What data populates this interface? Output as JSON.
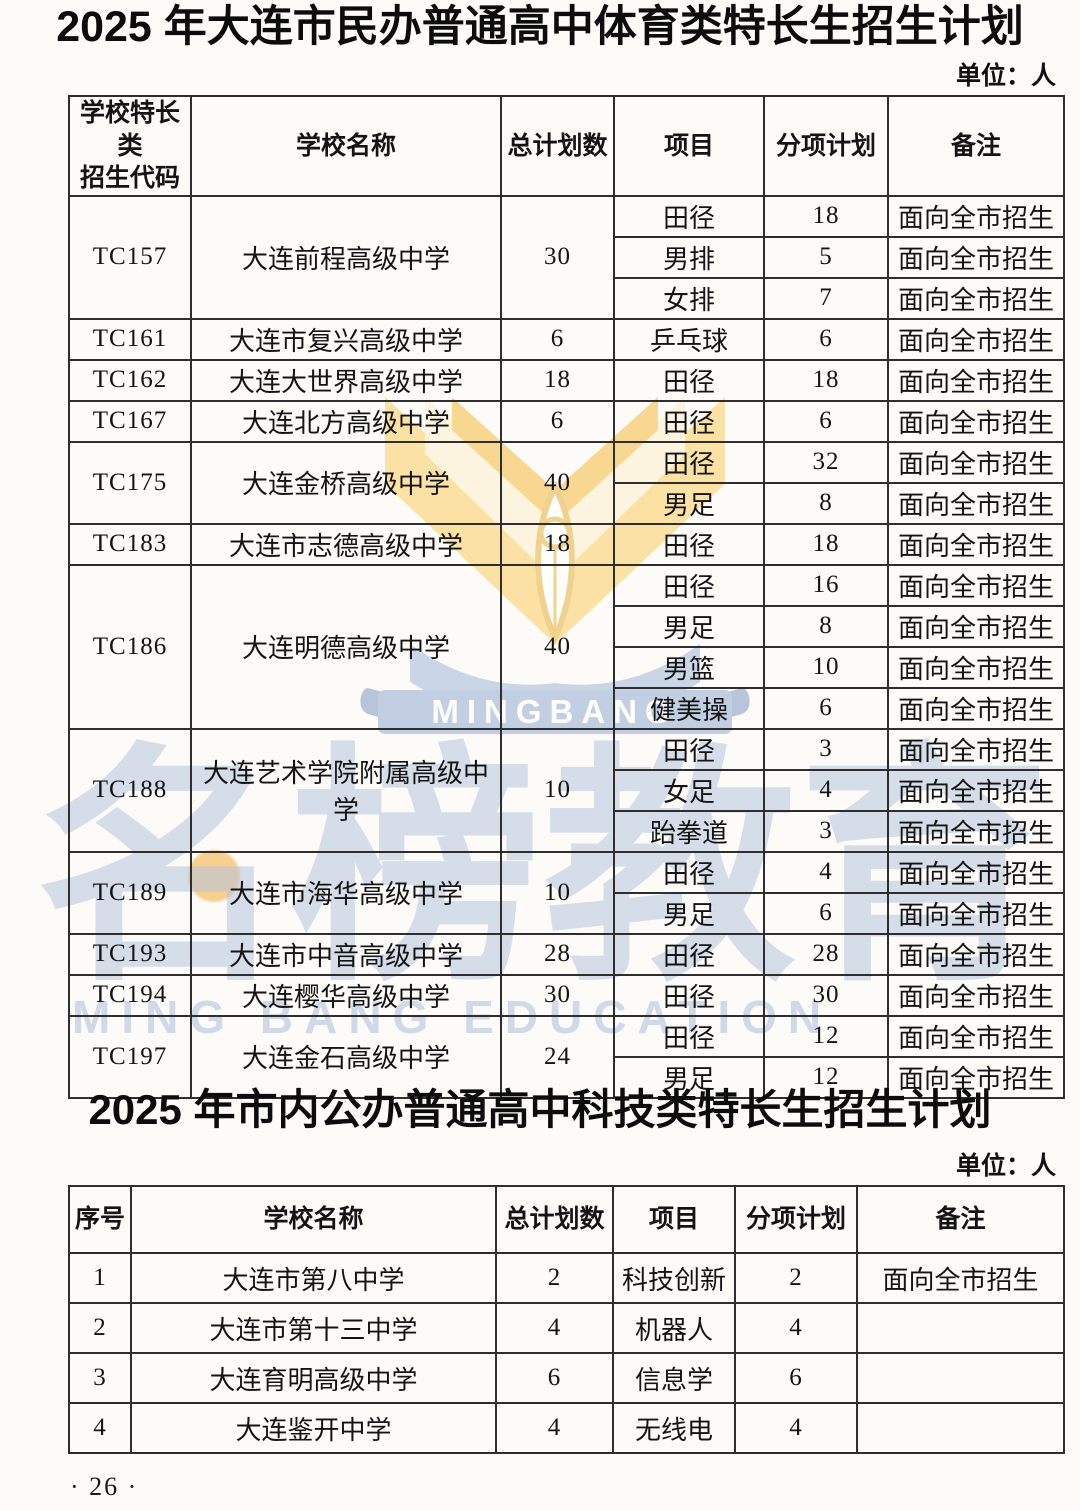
{
  "page": {
    "page_number": "· 26 ·"
  },
  "watermark": {
    "logo_text": "MINGBANG",
    "big_text": "名榜教育",
    "footer_text": "MING BANG EDUCATION",
    "accent_blue": "#9db1d3",
    "accent_yellow": "#fbd36e"
  },
  "table1": {
    "title": "2025 年大连市民办普通高中体育类特长生招生计划",
    "unit_label": "单位：人",
    "headers": [
      "学校特长类\n招生代码",
      "学校名称",
      "总计划数",
      "项目",
      "分项计划",
      "备注"
    ],
    "rows": [
      {
        "code": "TC157",
        "school": "大连前程高级中学",
        "total": "30",
        "items": [
          {
            "sport": "田径",
            "count": "18",
            "note": "面向全市招生"
          },
          {
            "sport": "男排",
            "count": "5",
            "note": "面向全市招生"
          },
          {
            "sport": "女排",
            "count": "7",
            "note": "面向全市招生"
          }
        ]
      },
      {
        "code": "TC161",
        "school": "大连市复兴高级中学",
        "total": "6",
        "items": [
          {
            "sport": "乒乓球",
            "count": "6",
            "note": "面向全市招生"
          }
        ]
      },
      {
        "code": "TC162",
        "school": "大连大世界高级中学",
        "total": "18",
        "items": [
          {
            "sport": "田径",
            "count": "18",
            "note": "面向全市招生"
          }
        ]
      },
      {
        "code": "TC167",
        "school": "大连北方高级中学",
        "total": "6",
        "items": [
          {
            "sport": "田径",
            "count": "6",
            "note": "面向全市招生"
          }
        ]
      },
      {
        "code": "TC175",
        "school": "大连金桥高级中学",
        "total": "40",
        "items": [
          {
            "sport": "田径",
            "count": "32",
            "note": "面向全市招生"
          },
          {
            "sport": "男足",
            "count": "8",
            "note": "面向全市招生"
          }
        ]
      },
      {
        "code": "TC183",
        "school": "大连市志德高级中学",
        "total": "18",
        "items": [
          {
            "sport": "田径",
            "count": "18",
            "note": "面向全市招生"
          }
        ]
      },
      {
        "code": "TC186",
        "school": "大连明德高级中学",
        "total": "40",
        "items": [
          {
            "sport": "田径",
            "count": "16",
            "note": "面向全市招生"
          },
          {
            "sport": "男足",
            "count": "8",
            "note": "面向全市招生"
          },
          {
            "sport": "男篮",
            "count": "10",
            "note": "面向全市招生"
          },
          {
            "sport": "健美操",
            "count": "6",
            "note": "面向全市招生"
          }
        ]
      },
      {
        "code": "TC188",
        "school": "大连艺术学院附属高级中学",
        "total": "10",
        "items": [
          {
            "sport": "田径",
            "count": "3",
            "note": "面向全市招生"
          },
          {
            "sport": "女足",
            "count": "4",
            "note": "面向全市招生"
          },
          {
            "sport": "跆拳道",
            "count": "3",
            "note": "面向全市招生"
          }
        ]
      },
      {
        "code": "TC189",
        "school": "大连市海华高级中学",
        "total": "10",
        "items": [
          {
            "sport": "田径",
            "count": "4",
            "note": "面向全市招生"
          },
          {
            "sport": "男足",
            "count": "6",
            "note": "面向全市招生"
          }
        ]
      },
      {
        "code": "TC193",
        "school": "大连市中音高级中学",
        "total": "28",
        "items": [
          {
            "sport": "田径",
            "count": "28",
            "note": "面向全市招生"
          }
        ]
      },
      {
        "code": "TC194",
        "school": "大连樱华高级中学",
        "total": "30",
        "items": [
          {
            "sport": "田径",
            "count": "30",
            "note": "面向全市招生"
          }
        ]
      },
      {
        "code": "TC197",
        "school": "大连金石高级中学",
        "total": "24",
        "items": [
          {
            "sport": "田径",
            "count": "12",
            "note": "面向全市招生"
          },
          {
            "sport": "男足",
            "count": "12",
            "note": "面向全市招生"
          }
        ]
      }
    ]
  },
  "table2": {
    "title": "2025 年市内公办普通高中科技类特长生招生计划",
    "unit_label": "单位：人",
    "headers": [
      "序号",
      "学校名称",
      "总计划数",
      "项目",
      "分项计划",
      "备注"
    ],
    "rows": [
      {
        "index": "1",
        "school": "大连市第八中学",
        "total": "2",
        "project": "科技创新",
        "count": "2",
        "note": "面向全市招生"
      },
      {
        "index": "2",
        "school": "大连市第十三中学",
        "total": "4",
        "project": "机器人",
        "count": "4",
        "note": ""
      },
      {
        "index": "3",
        "school": "大连育明高级中学",
        "total": "6",
        "project": "信息学",
        "count": "6",
        "note": ""
      },
      {
        "index": "4",
        "school": "大连鉴开中学",
        "total": "4",
        "project": "无线电",
        "count": "4",
        "note": ""
      }
    ]
  }
}
